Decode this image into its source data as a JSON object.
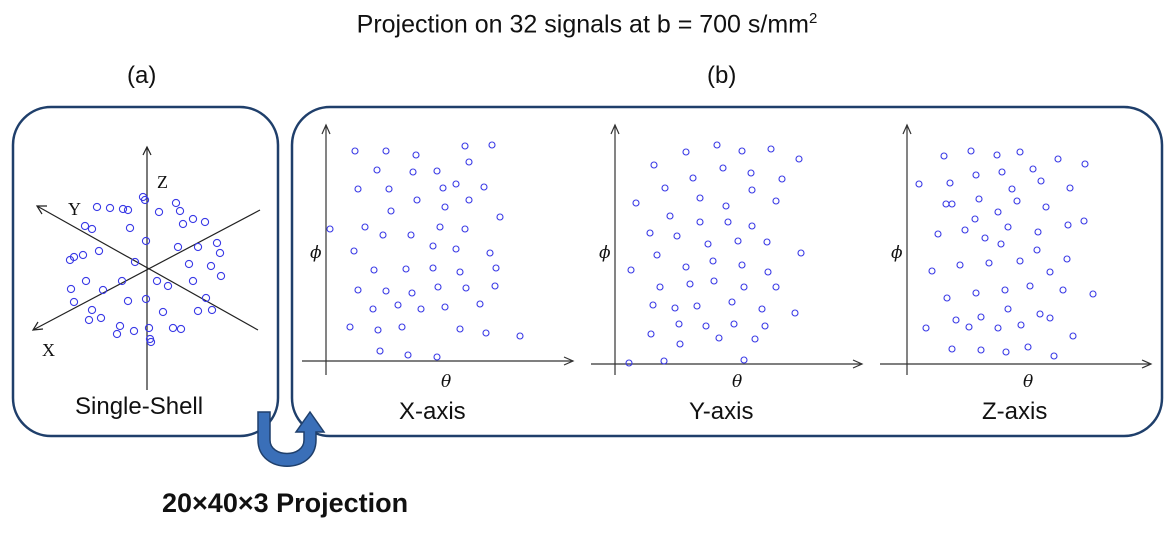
{
  "title": {
    "main": "Projection on 32 signals at b = 700 s/mm",
    "superscript": "2"
  },
  "panel_a": {
    "label": "(a)",
    "caption": "Single-Shell",
    "axes": [
      "X",
      "Y",
      "Z"
    ]
  },
  "panel_b": {
    "label": "(b)",
    "x_axis_label": "θ",
    "y_axis_label": "ϕ",
    "subplots": [
      {
        "caption": "X-axis"
      },
      {
        "caption": "Y-axis"
      },
      {
        "caption": "Z-axis"
      }
    ]
  },
  "bottom_label": "20×40×3 Projection",
  "colors": {
    "box_border": "#1f3f6b",
    "arrow_fill": "#3a6fb8",
    "marker": "#3a3ae6"
  }
}
